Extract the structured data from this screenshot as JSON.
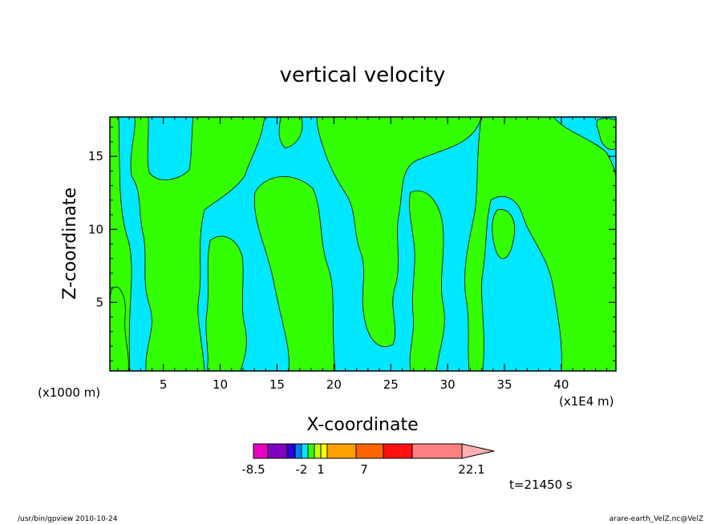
{
  "chart_data": {
    "type": "heatmap",
    "title": "vertical velocity",
    "xlabel": "X-coordinate",
    "ylabel": "Z-coordinate",
    "x_unit_left": "(x1000 m)",
    "x_unit_right": "(x1E4 m)",
    "xlim": [
      0.3,
      44.8
    ],
    "ylim": [
      0.3,
      17.7
    ],
    "x_ticks": [
      5,
      10,
      15,
      20,
      25,
      30,
      35,
      40
    ],
    "y_ticks": [
      5,
      10,
      15
    ],
    "colors": {
      "background_level": "#00e8ff",
      "positive_level": "#33ff00"
    },
    "colorbar": {
      "labels": [
        "-8.5",
        "-2",
        "1",
        "7",
        "22.1"
      ],
      "colors": [
        "#e800c0",
        "#8000c0",
        "#2800d8",
        "#0080ff",
        "#00e8ff",
        "#33ff00",
        "#c8ff00",
        "#ffff00",
        "#ffa000",
        "#ff6400",
        "#ff1010",
        "#ff8080",
        "#ffb0b0"
      ]
    },
    "time_label": "t=21450 s"
  },
  "footer": {
    "left": "/usr/bin/gpview   2010-10-24",
    "right": "arare-earth_VelZ.nc@VelZ"
  }
}
